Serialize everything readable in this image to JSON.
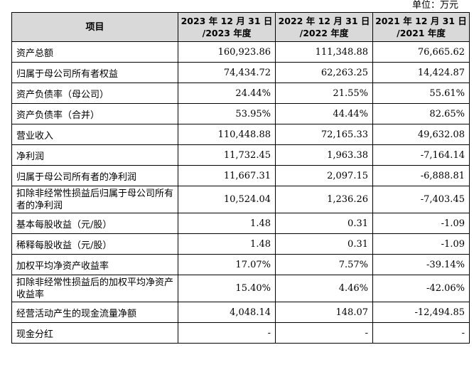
{
  "unit_label": "单位：万元",
  "table": {
    "headers": [
      "项目",
      "2023 年 12 月 31 日/2023 年度",
      "2022 年 12 月 31 日/2022 年度",
      "2021 年 12 月 31 日/2021 年度"
    ],
    "header_lines": [
      [
        "项目"
      ],
      [
        "2023 年 12 月 31 日",
        "/2023 年度"
      ],
      [
        "2022 年 12 月 31 日",
        "/2022 年度"
      ],
      [
        "2021 年 12 月 31 日",
        "/2021 年度"
      ]
    ],
    "rows": [
      {
        "item": "资产总额",
        "y2023": "160,923.86",
        "y2022": "111,348.88",
        "y2021": "76,665.62"
      },
      {
        "item": "归属于母公司所有者权益",
        "y2023": "74,434.72",
        "y2022": "62,263.25",
        "y2021": "14,424.87"
      },
      {
        "item": "资产负债率（母公司）",
        "y2023": "24.44%",
        "y2022": "21.55%",
        "y2021": "55.61%"
      },
      {
        "item": "资产负债率（合并）",
        "y2023": "53.95%",
        "y2022": "44.44%",
        "y2021": "82.65%"
      },
      {
        "item": "营业收入",
        "y2023": "110,448.88",
        "y2022": "72,165.33",
        "y2021": "49,632.08"
      },
      {
        "item": "净利润",
        "y2023": "11,732.45",
        "y2022": "1,963.38",
        "y2021": "-7,164.14"
      },
      {
        "item": "归属于母公司所有者的净利润",
        "y2023": "11,667.31",
        "y2022": "2,097.15",
        "y2021": "-6,888.81"
      },
      {
        "item": "扣除非经常性损益后归属于母公司所有者的净利润",
        "y2023": "10,524.04",
        "y2022": "1,236.26",
        "y2021": "-7,403.45"
      },
      {
        "item": "基本每股收益（元/股）",
        "y2023": "1.48",
        "y2022": "0.31",
        "y2021": "-1.09"
      },
      {
        "item": "稀释每股收益（元/股）",
        "y2023": "1.48",
        "y2022": "0.31",
        "y2021": "-1.09"
      },
      {
        "item": "加权平均净资产收益率",
        "y2023": "17.07%",
        "y2022": "7.57%",
        "y2021": "-39.14%"
      },
      {
        "item": "扣除非经常性损益后的加权平均净资产收益率",
        "y2023": "15.40%",
        "y2022": "4.46%",
        "y2021": "-42.06%"
      },
      {
        "item": "经营活动产生的现金流量净额",
        "y2023": "4,048.14",
        "y2022": "148.07",
        "y2021": "-12,494.85"
      },
      {
        "item": "现金分红",
        "y2023": "-",
        "y2022": "-",
        "y2021": "-"
      }
    ]
  }
}
